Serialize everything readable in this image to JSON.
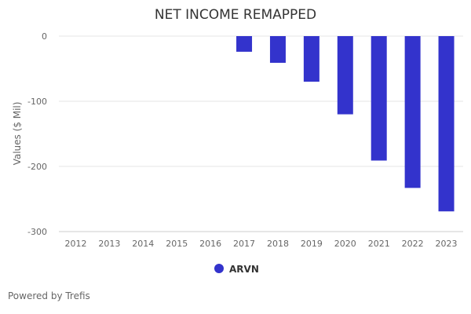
{
  "chart_data": {
    "type": "bar",
    "title": "NET INCOME REMAPPED",
    "xlabel": "",
    "ylabel": "Values ($ Mil)",
    "categories": [
      "2012",
      "2013",
      "2014",
      "2015",
      "2016",
      "2017",
      "2018",
      "2019",
      "2020",
      "2021",
      "2022",
      "2023"
    ],
    "series": [
      {
        "name": "ARVN",
        "values": [
          null,
          null,
          null,
          null,
          null,
          -24,
          -41,
          -70,
          -120,
          -191,
          -233,
          -269
        ]
      }
    ],
    "yticks": [
      0,
      -100,
      -200,
      -300
    ],
    "ylim": [
      -300,
      0
    ],
    "grid": true,
    "legend": "bottom-center",
    "colors": {
      "series": "#3333cc",
      "grid": "#e6e6e6",
      "axis": "#cccccc"
    }
  },
  "credit": "Powered by Trefis"
}
